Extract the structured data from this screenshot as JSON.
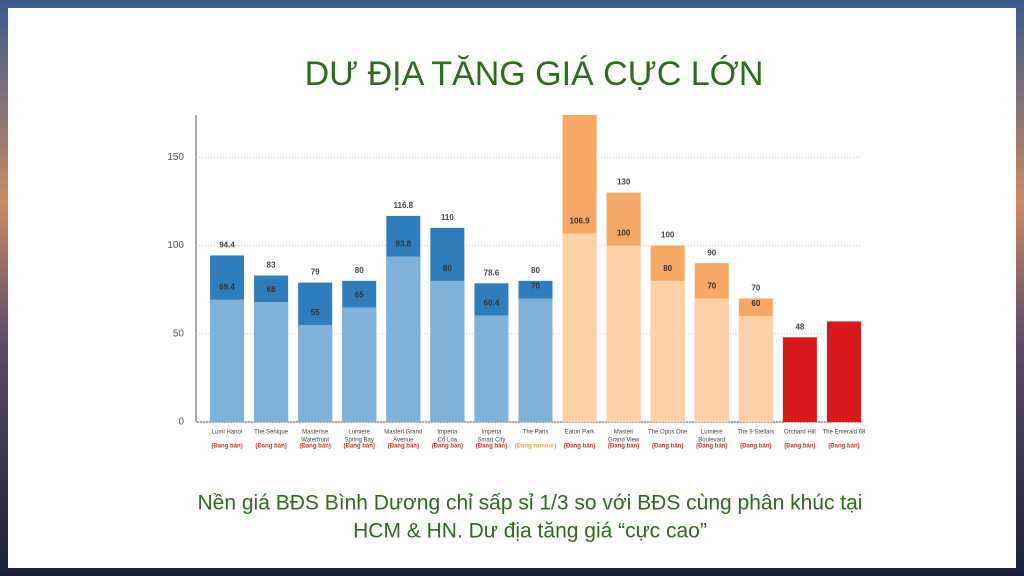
{
  "chart_data": {
    "type": "bar",
    "title": "DƯ ĐỊA TĂNG GIÁ CỰC LỚN",
    "caption": [
      "Nền giá BĐS Bình Dương chỉ sấp sỉ 1/3 so với BĐS cùng phân khúc tại",
      "HCM & HN. Dư địa tăng giá “cực cao”"
    ],
    "categories": [
      [
        "Lumi Hanoi"
      ],
      [
        "The Senique"
      ],
      [
        "Masterise",
        "Waterfront"
      ],
      [
        "Lumiere",
        "Spring Bay"
      ],
      [
        "Masteri Grand",
        "Avenue"
      ],
      [
        "Imperia",
        "Cổ Loa"
      ],
      [
        "Imperia",
        "Smart City"
      ],
      [
        "The Paris"
      ],
      [
        "Eaton Park"
      ],
      [
        "Masteri",
        "Grand View"
      ],
      [
        "The Opus One"
      ],
      [
        "Lumiere",
        "Boulevard"
      ],
      [
        "The 9 Stellars"
      ],
      [
        "Orchard Hill"
      ],
      [
        "The Emerald 68"
      ]
    ],
    "status": [
      "(Đang bán)",
      "(Đang bán)",
      "(Đang bán)",
      "(Đang bán)",
      "(Đang bán)",
      "(Đang bán)",
      "(Đang bán)",
      "(Đang rumour)",
      "(Đang bán)",
      "(Đang bán)",
      "(Đang bán)",
      "(Đang bán)",
      "(Đang bán)",
      "(Đang bán)",
      "(Đang bán)"
    ],
    "status_colors": [
      "#d0312d",
      "#d0312d",
      "#d0312d",
      "#d0312d",
      "#d0312d",
      "#d0312d",
      "#d0312d",
      "#f0a050",
      "#d0312d",
      "#d0312d",
      "#d0312d",
      "#d0312d",
      "#d0312d",
      "#d0312d",
      "#d0312d"
    ],
    "series": [
      {
        "values": [
          94.4,
          83,
          79,
          80,
          116.8,
          110,
          78.6,
          80,
          174,
          130,
          100,
          90,
          70,
          48,
          57
        ],
        "value_labels": [
          "94.4",
          "83",
          "79",
          "80",
          "116.8",
          "110",
          "78.6",
          "80",
          null,
          "130",
          "100",
          "90",
          "70",
          "48",
          null
        ],
        "colors": [
          "#2f7dbb",
          "#2f7dbb",
          "#2f7dbb",
          "#2f7dbb",
          "#2f7dbb",
          "#2f7dbb",
          "#2f7dbb",
          "#2f7dbb",
          "#f7a864",
          "#f7a864",
          "#f7a864",
          "#f7a864",
          "#f7a864",
          "#d7191e",
          "#d7191e"
        ]
      },
      {
        "values": [
          69.4,
          68,
          55,
          65,
          93.8,
          80,
          60.4,
          70,
          106.9,
          100,
          80,
          70,
          60,
          null,
          null
        ],
        "colors": [
          "#80b1d8",
          "#80b1d8",
          "#80b1d8",
          "#80b1d8",
          "#80b1d8",
          "#80b1d8",
          "#80b1d8",
          "#80b1d8",
          "#fdd1a7",
          "#fdd1a7",
          "#fdd1a7",
          "#fdd1a7",
          "#fdd1a7",
          "#fdd1a7",
          "#fdd1a7"
        ]
      }
    ],
    "ylim": [
      0,
      174
    ],
    "yticks": [
      0,
      50,
      100,
      150
    ],
    "grid": true
  }
}
